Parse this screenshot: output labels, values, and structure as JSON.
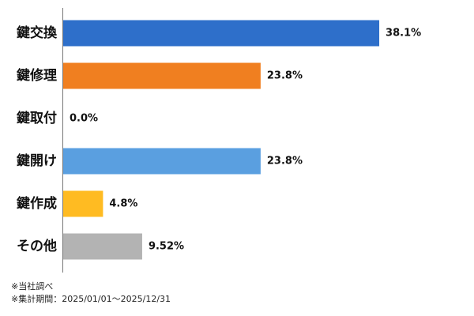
{
  "chart_data": {
    "type": "bar",
    "orientation": "horizontal",
    "categories": [
      "鍵交換",
      "鍵修理",
      "鍵取付",
      "鍵開け",
      "鍵作成",
      "その他"
    ],
    "values": [
      38.1,
      23.8,
      0.0,
      23.8,
      4.8,
      9.52
    ],
    "value_labels": [
      "38.1%",
      "23.8%",
      "0.0%",
      "23.8%",
      "4.8%",
      "9.52%"
    ],
    "colors": [
      "#2e6fca",
      "#f07f20",
      "#9e9e9e",
      "#5a9fe0",
      "#ffbb22",
      "#b3b3b3"
    ],
    "xlim": [
      0,
      40
    ],
    "grid": false,
    "legend": "none"
  },
  "footnotes": {
    "source": "※当社調べ",
    "period": "※集計期間：2025/01/01〜2025/12/31"
  }
}
